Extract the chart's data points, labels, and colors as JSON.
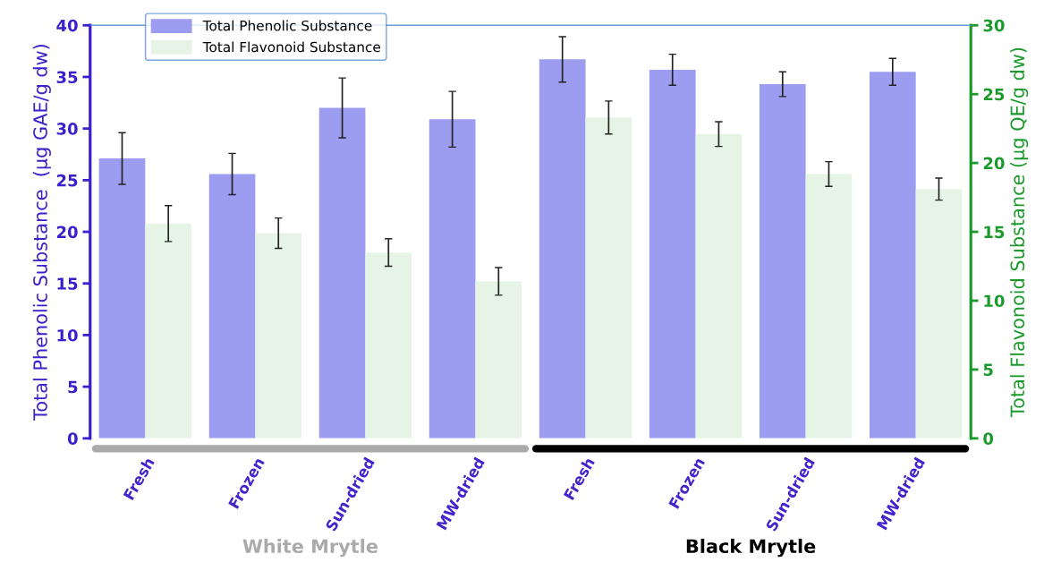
{
  "chart_data": {
    "type": "bar",
    "categories": [
      "Fresh",
      "Frozen",
      "Sun-dried",
      "MW-dried",
      "Fresh",
      "Frozen",
      "Sun-dried",
      "MW-dried"
    ],
    "series": [
      {
        "name": "Total Phenolic Substance",
        "color": "#9c9cf0",
        "values": [
          27.1,
          25.6,
          32.0,
          30.9,
          36.7,
          35.7,
          34.3,
          35.5
        ],
        "errors": [
          2.5,
          2.0,
          2.9,
          2.7,
          2.2,
          1.5,
          1.2,
          1.3
        ]
      },
      {
        "name": "Total Flavonoid Substance",
        "color": "#e6f4e6",
        "axis": "y2",
        "values": [
          15.6,
          14.9,
          13.5,
          11.4,
          23.3,
          22.1,
          19.2,
          18.1
        ],
        "errors": [
          1.3,
          1.1,
          1.0,
          1.0,
          1.2,
          0.9,
          0.9,
          0.8
        ]
      }
    ],
    "ylabel": "Total Phenolic Substance  (µg GAE/g dw)",
    "y2label": "Total Flavonoid Substance (µg QE/g dw)",
    "ylim": [
      0,
      40
    ],
    "yticks": [
      0,
      5,
      10,
      15,
      20,
      25,
      30,
      35,
      40
    ],
    "y2lim": [
      0,
      30
    ],
    "y2ticks": [
      0,
      5,
      10,
      15,
      20,
      25,
      30
    ],
    "annotations": [
      "White Mrytle",
      "Black Mrytle"
    ],
    "legend": "top left",
    "grid": false
  }
}
